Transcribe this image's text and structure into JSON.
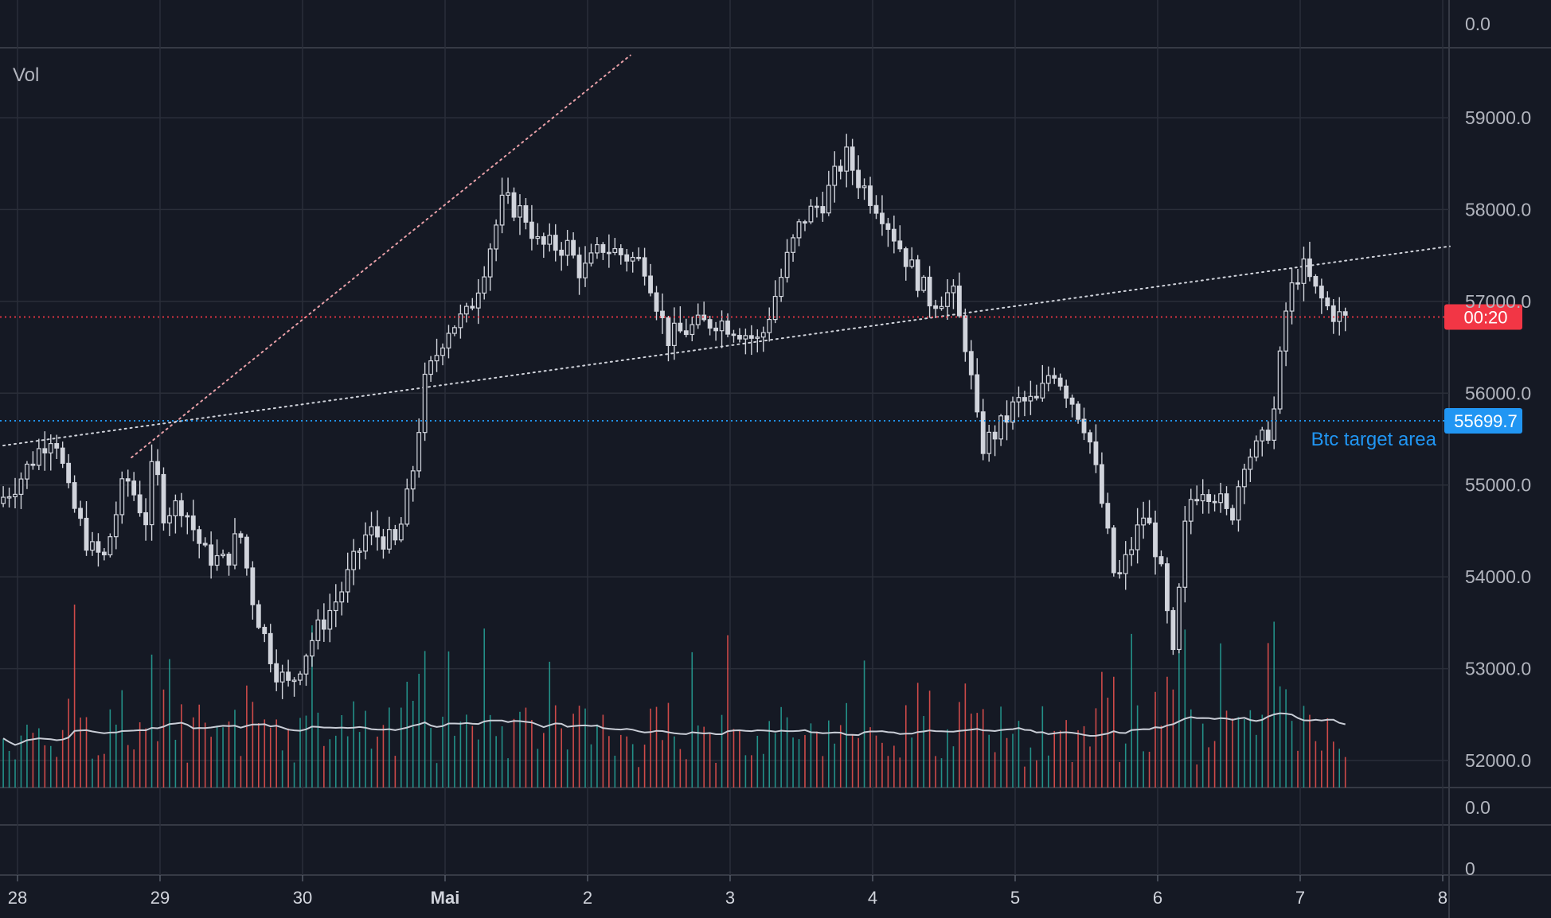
{
  "chart_data": {
    "type": "candlestick",
    "indicator_label": "Vol",
    "price_axis": {
      "ticks": [
        "59000.0",
        "58000.0",
        "57000.0",
        "56000.0",
        "55000.0",
        "54000.0",
        "53000.0",
        "52000.0"
      ],
      "ylim": [
        51700,
        59950
      ],
      "top_pane_label": "0.0",
      "lower_pane_labels": [
        "0.0",
        "0"
      ]
    },
    "x_axis": {
      "ticks": [
        {
          "label": "28",
          "bold": false
        },
        {
          "label": "29",
          "bold": false
        },
        {
          "label": "30",
          "bold": false
        },
        {
          "label": "Mai",
          "bold": true
        },
        {
          "label": "2",
          "bold": false
        },
        {
          "label": "3",
          "bold": false
        },
        {
          "label": "4",
          "bold": false
        },
        {
          "label": "5",
          "bold": false
        },
        {
          "label": "6",
          "bold": false
        },
        {
          "label": "7",
          "bold": false
        },
        {
          "label": "8",
          "bold": false
        }
      ],
      "xlim_days": [
        27.9,
        38.05
      ]
    },
    "current_price_line": {
      "price": 56830,
      "badge": "00:20",
      "color": "#f23645"
    },
    "target_line": {
      "price": 55699.7,
      "badge": "55699.7",
      "label": "Btc target area",
      "color": "#2196f3"
    },
    "trendlines": [
      {
        "style": "dotted",
        "color": "#e8a0a8",
        "from": {
          "day": 28.8,
          "price": 55300
        },
        "to": {
          "day": 32.3,
          "price": 59680
        }
      },
      {
        "style": "dotted",
        "color": "#d1d4dc",
        "from": {
          "day": 27.9,
          "price": 55430
        },
        "to": {
          "day": 38.05,
          "price": 57600
        }
      }
    ],
    "price_path": [
      [
        27.9,
        54800
      ],
      [
        28.05,
        55050
      ],
      [
        28.2,
        55400
      ],
      [
        28.3,
        55600
      ],
      [
        28.4,
        54900
      ],
      [
        28.55,
        54300
      ],
      [
        28.65,
        54200
      ],
      [
        28.8,
        55100
      ],
      [
        28.95,
        54600
      ],
      [
        29.0,
        55400
      ],
      [
        29.05,
        54700
      ],
      [
        29.2,
        54800
      ],
      [
        29.35,
        54250
      ],
      [
        29.5,
        54150
      ],
      [
        29.6,
        54500
      ],
      [
        29.7,
        53700
      ],
      [
        29.85,
        53000
      ],
      [
        29.95,
        52800
      ],
      [
        30.1,
        53300
      ],
      [
        30.3,
        53800
      ],
      [
        30.5,
        54500
      ],
      [
        30.7,
        54350
      ],
      [
        30.8,
        55000
      ],
      [
        30.9,
        56100
      ],
      [
        31.05,
        56700
      ],
      [
        31.2,
        56850
      ],
      [
        31.3,
        57300
      ],
      [
        31.45,
        58100
      ],
      [
        31.6,
        57950
      ],
      [
        31.7,
        57600
      ],
      [
        31.9,
        57600
      ],
      [
        32.0,
        57300
      ],
      [
        32.15,
        57600
      ],
      [
        32.3,
        57500
      ],
      [
        32.45,
        57400
      ],
      [
        32.6,
        56600
      ],
      [
        32.75,
        56700
      ],
      [
        32.95,
        56800
      ],
      [
        33.1,
        56700
      ],
      [
        33.25,
        56550
      ],
      [
        33.45,
        57500
      ],
      [
        33.55,
        57900
      ],
      [
        33.7,
        58100
      ],
      [
        33.85,
        58600
      ],
      [
        33.95,
        58300
      ],
      [
        34.1,
        58000
      ],
      [
        34.2,
        57700
      ],
      [
        34.3,
        57400
      ],
      [
        34.45,
        57000
      ],
      [
        34.6,
        57100
      ],
      [
        34.7,
        56500
      ],
      [
        34.8,
        55400
      ],
      [
        34.95,
        55650
      ],
      [
        35.05,
        55900
      ],
      [
        35.2,
        55900
      ],
      [
        35.3,
        56300
      ],
      [
        35.45,
        55900
      ],
      [
        35.55,
        55600
      ],
      [
        35.65,
        54800
      ],
      [
        35.75,
        53900
      ],
      [
        35.85,
        54300
      ],
      [
        35.95,
        54700
      ],
      [
        36.05,
        54200
      ],
      [
        36.15,
        53100
      ],
      [
        36.25,
        54800
      ],
      [
        36.35,
        55000
      ],
      [
        36.45,
        54900
      ],
      [
        36.55,
        54600
      ],
      [
        36.65,
        55300
      ],
      [
        36.75,
        55400
      ],
      [
        36.85,
        55700
      ],
      [
        36.95,
        57000
      ],
      [
        37.05,
        57400
      ],
      [
        37.15,
        57100
      ],
      [
        37.25,
        56900
      ],
      [
        37.35,
        56800
      ]
    ],
    "volume": {
      "ma_color": "#c9cdd6",
      "up_color": "#26a69a",
      "down_color": "#ef5350"
    }
  },
  "colors": {
    "background": "#151924",
    "grid": "#2a2e39",
    "candle": "#d1d4dc",
    "axis_text": "#b2b5be"
  }
}
